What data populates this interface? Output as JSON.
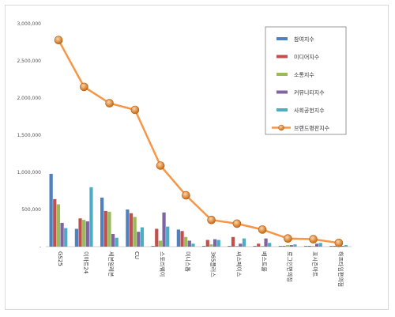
{
  "chart_data": {
    "type": "bar",
    "title": "",
    "xlabel": "",
    "ylabel": "",
    "ylim": [
      0,
      3000000
    ],
    "yticks": [
      0,
      500000,
      1000000,
      1500000,
      2000000,
      2500000,
      3000000
    ],
    "ytick_labels": [
      "-",
      "500,000",
      "1,000,000",
      "1,500,000",
      "2,000,000",
      "2,500,000",
      "3,000,000"
    ],
    "grid": false,
    "legend_position": "top-right",
    "categories": [
      "GS25",
      "이마트24",
      "세븐일레븐",
      "CU",
      "스토리웨이",
      "미니스톱",
      "365플러스",
      "씨스페이스",
      "베스트올",
      "로그인편의점",
      "포시즌마트",
      "하프타임편의점"
    ],
    "series": [
      {
        "name": "참여지수",
        "color": "#4f81bd",
        "values": [
          980000,
          240000,
          660000,
          500000,
          10000,
          230000,
          10000,
          10000,
          10000,
          10000,
          10000,
          10000
        ]
      },
      {
        "name": "미디어지수",
        "color": "#c0504d",
        "values": [
          640000,
          380000,
          480000,
          450000,
          240000,
          210000,
          90000,
          130000,
          40000,
          10000,
          10000,
          10000
        ]
      },
      {
        "name": "소통지수",
        "color": "#9bbb59",
        "values": [
          570000,
          360000,
          470000,
          400000,
          80000,
          130000,
          30000,
          10000,
          10000,
          20000,
          10000,
          10000
        ]
      },
      {
        "name": "커뮤니티지수",
        "color": "#8064a2",
        "values": [
          320000,
          340000,
          170000,
          200000,
          460000,
          80000,
          100000,
          40000,
          110000,
          20000,
          40000,
          10000
        ]
      },
      {
        "name": "사회공헌지수",
        "color": "#4bacc6",
        "values": [
          250000,
          800000,
          120000,
          260000,
          270000,
          40000,
          90000,
          110000,
          50000,
          30000,
          50000,
          20000
        ]
      }
    ],
    "line_series": {
      "name": "브랜드평판지수",
      "color": "#f79646",
      "values": [
        2780000,
        2150000,
        1930000,
        1840000,
        1090000,
        690000,
        360000,
        310000,
        230000,
        110000,
        100000,
        50000
      ]
    }
  }
}
